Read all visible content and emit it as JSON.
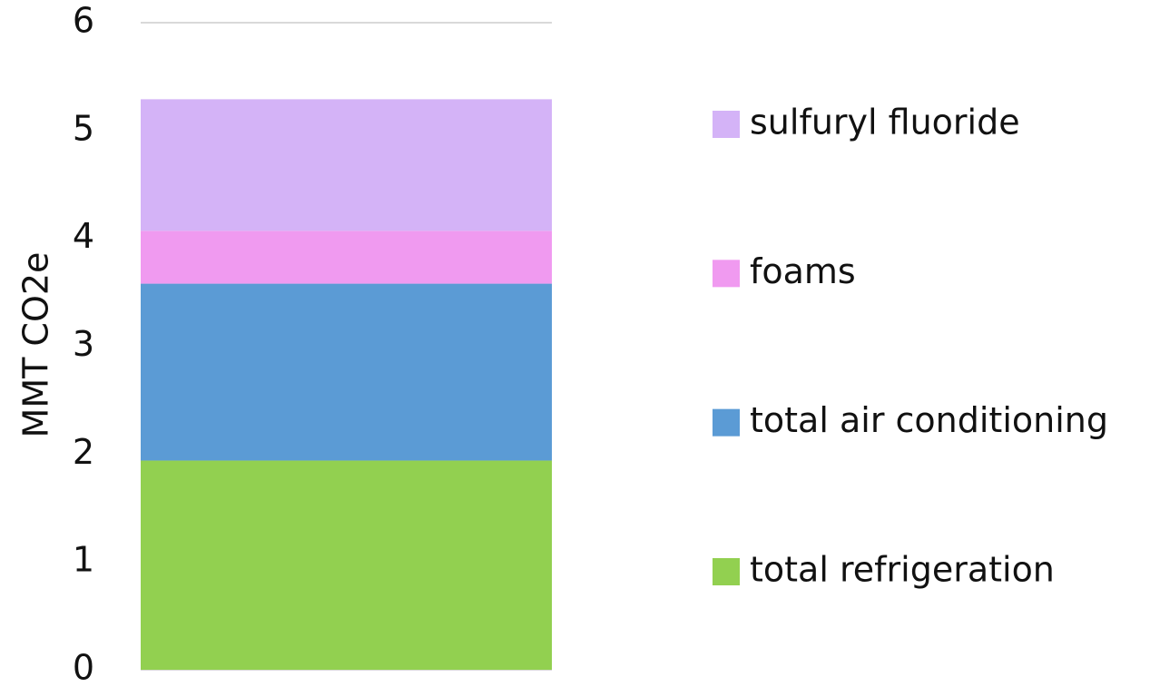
{
  "chart_data": {
    "type": "stacked_bar",
    "y_label": "MMT CO2e",
    "categories": [
      null
    ],
    "series": [
      {
        "name": "total refrigeration",
        "color": "#92d050",
        "values": [
          1.94
        ]
      },
      {
        "name": "total air conditioning",
        "color": "#5b9bd5",
        "values": [
          1.64
        ]
      },
      {
        "name": "foams",
        "color": "#f09af0",
        "values": [
          0.49
        ]
      },
      {
        "name": "sulfuryl fluoride",
        "color": "#d4b3f7",
        "values": [
          1.22
        ]
      }
    ],
    "ylim": [
      0,
      6
    ],
    "yticks": [
      0,
      1,
      2,
      3,
      4,
      5,
      6
    ],
    "grid": true,
    "legend": "right"
  }
}
